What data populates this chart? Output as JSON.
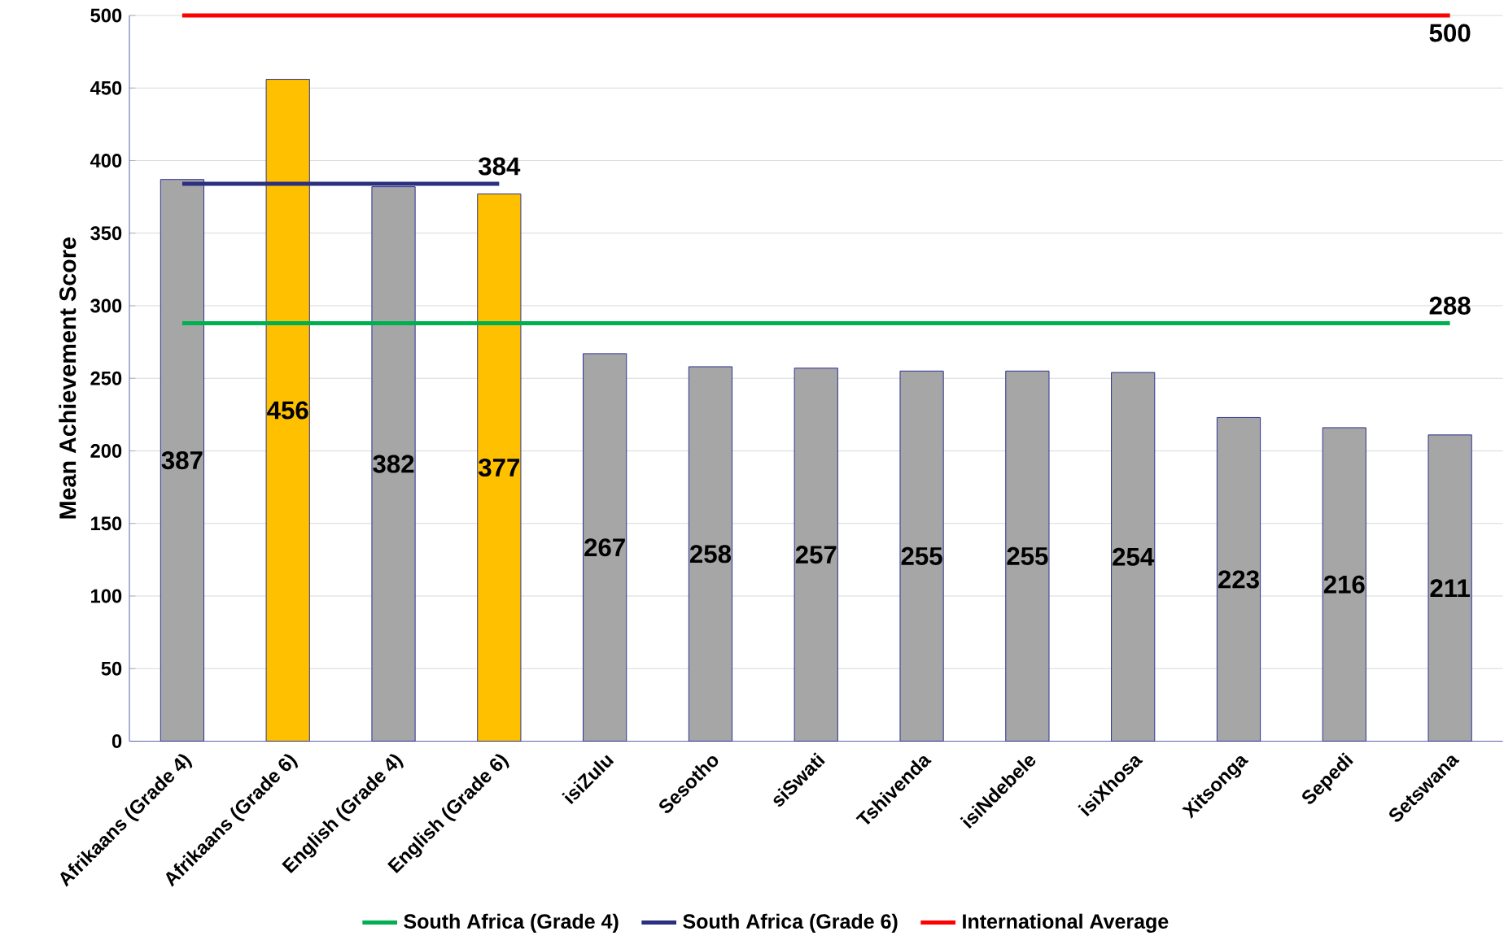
{
  "chart_data": {
    "type": "bar",
    "ylabel": "Mean Achievement Score",
    "categories": [
      "Afrikaans (Grade 4)",
      "Afrikaans (Grade 6)",
      "English (Grade 4)",
      "English (Grade 6)",
      "isiZulu",
      "Sesotho",
      "siSwati",
      "Tshivenda",
      "isiNdebele",
      "isiXhosa",
      "Xitsonga",
      "Sepedi",
      "Setswana"
    ],
    "series": [
      {
        "colors": [
          "#a6a6a6",
          "#ffc000",
          "#a6a6a6",
          "#ffc000",
          "#a6a6a6",
          "#a6a6a6",
          "#a6a6a6",
          "#a6a6a6",
          "#a6a6a6",
          "#a6a6a6",
          "#a6a6a6",
          "#a6a6a6",
          "#a6a6a6"
        ],
        "values": [
          387,
          456,
          382,
          377,
          267,
          258,
          257,
          255,
          255,
          254,
          223,
          216,
          211
        ],
        "value_labels": [
          "387",
          "456",
          "382",
          "377",
          "267",
          "258",
          "257",
          "255",
          "255",
          "254",
          "223",
          "216",
          "211"
        ]
      },
      {
        "type": "line",
        "name": "South Africa (Grade 4)",
        "color": "#00b050",
        "values": [
          288,
          288,
          288,
          288,
          288,
          288,
          288,
          288,
          288,
          288,
          288,
          288,
          288
        ],
        "value_labels": [
          null,
          null,
          null,
          null,
          null,
          null,
          null,
          null,
          null,
          null,
          null,
          null,
          "288"
        ]
      },
      {
        "type": "line",
        "name": "South Africa (Grade 6)",
        "color": "#2b2f7f",
        "values": [
          384,
          384,
          384,
          384,
          null,
          null,
          null,
          null,
          null,
          null,
          null,
          null,
          null
        ],
        "value_labels": [
          null,
          null,
          null,
          "384",
          null,
          null,
          null,
          null,
          null,
          null,
          null,
          null,
          null
        ]
      },
      {
        "type": "line",
        "name": "International Average",
        "color": "#ff0000",
        "values": [
          500,
          500,
          500,
          500,
          500,
          500,
          500,
          500,
          500,
          500,
          500,
          500,
          500
        ],
        "value_labels": [
          null,
          null,
          null,
          null,
          null,
          null,
          null,
          null,
          null,
          null,
          null,
          null,
          "500"
        ]
      }
    ],
    "ylim": [
      0,
      500
    ],
    "yticks": [
      0,
      50,
      100,
      150,
      200,
      250,
      300,
      350,
      400,
      450,
      500
    ],
    "grid": "y",
    "legend": "bottom"
  }
}
